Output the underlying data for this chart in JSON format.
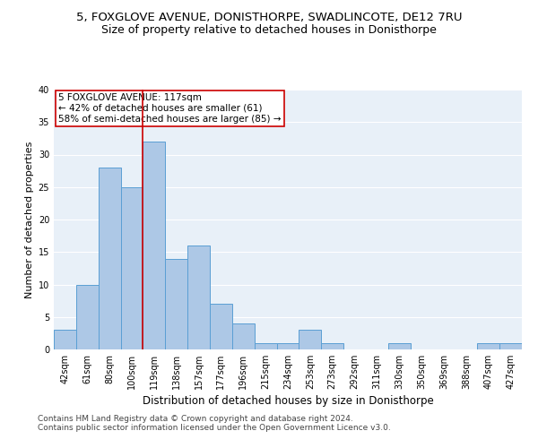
{
  "title1": "5, FOXGLOVE AVENUE, DONISTHORPE, SWADLINCOTE, DE12 7RU",
  "title2": "Size of property relative to detached houses in Donisthorpe",
  "xlabel": "Distribution of detached houses by size in Donisthorpe",
  "ylabel": "Number of detached properties",
  "footnote1": "Contains HM Land Registry data © Crown copyright and database right 2024.",
  "footnote2": "Contains public sector information licensed under the Open Government Licence v3.0.",
  "categories": [
    "42sqm",
    "61sqm",
    "80sqm",
    "100sqm",
    "119sqm",
    "138sqm",
    "157sqm",
    "177sqm",
    "196sqm",
    "215sqm",
    "234sqm",
    "253sqm",
    "273sqm",
    "292sqm",
    "311sqm",
    "330sqm",
    "350sqm",
    "369sqm",
    "388sqm",
    "407sqm",
    "427sqm"
  ],
  "values": [
    3,
    10,
    28,
    25,
    32,
    14,
    16,
    7,
    4,
    1,
    1,
    3,
    1,
    0,
    0,
    1,
    0,
    0,
    0,
    1,
    1
  ],
  "bar_color": "#adc8e6",
  "bar_edge_color": "#5a9fd4",
  "vline_x_index": 3.5,
  "vline_color": "#cc0000",
  "annotation_line1": "5 FOXGLOVE AVENUE: 117sqm",
  "annotation_line2": "← 42% of detached houses are smaller (61)",
  "annotation_line3": "58% of semi-detached houses are larger (85) →",
  "annotation_box_color": "white",
  "annotation_box_edge_color": "#cc0000",
  "ylim": [
    0,
    40
  ],
  "yticks": [
    0,
    5,
    10,
    15,
    20,
    25,
    30,
    35,
    40
  ],
  "bg_color": "#e8f0f8",
  "grid_color": "white",
  "title1_fontsize": 9.5,
  "title2_fontsize": 9,
  "xlabel_fontsize": 8.5,
  "ylabel_fontsize": 8,
  "tick_fontsize": 7,
  "annotation_fontsize": 7.5,
  "footnote_fontsize": 6.5
}
